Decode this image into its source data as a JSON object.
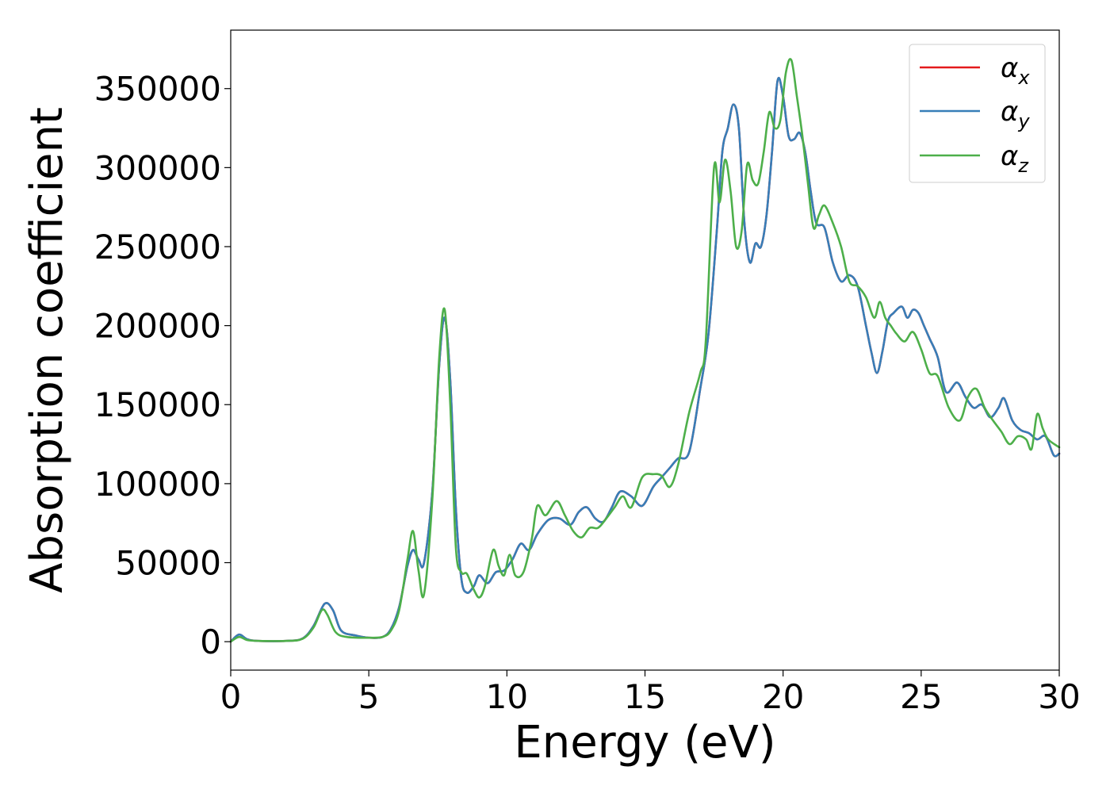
{
  "chart_data": {
    "type": "line",
    "title": "",
    "xlabel": "Energy (eV)",
    "ylabel": "Absorption coefficient",
    "xlim": [
      0,
      30
    ],
    "ylim": [
      -18000,
      387000
    ],
    "x_ticks": [
      0,
      5,
      10,
      15,
      20,
      25,
      30
    ],
    "y_ticks": [
      0,
      50000,
      100000,
      150000,
      200000,
      250000,
      300000,
      350000
    ],
    "grid": false,
    "legend_position": "top-right",
    "series": [
      {
        "name": "α",
        "subscript": "x",
        "color": "#e41a1c",
        "x": [
          0,
          0.3,
          0.6,
          1.0,
          2.0,
          2.6,
          3.0,
          3.4,
          3.7,
          4.0,
          4.5,
          5.0,
          5.5,
          5.8,
          6.1,
          6.4,
          6.6,
          6.8,
          7.0,
          7.3,
          7.55,
          7.75,
          7.95,
          8.15,
          8.35,
          8.55,
          8.8,
          9.0,
          9.3,
          9.6,
          9.9,
          10.2,
          10.5,
          10.8,
          11.1,
          11.5,
          11.9,
          12.3,
          12.6,
          12.9,
          13.2,
          13.5,
          13.8,
          14.1,
          14.5,
          14.9,
          15.3,
          15.6,
          15.9,
          16.2,
          16.6,
          17.0,
          17.3,
          17.6,
          17.8,
          18.0,
          18.2,
          18.4,
          18.6,
          18.8,
          19.0,
          19.2,
          19.4,
          19.6,
          19.8,
          20.0,
          20.2,
          20.4,
          20.6,
          20.8,
          21.0,
          21.2,
          21.5,
          21.8,
          22.1,
          22.4,
          22.7,
          23.0,
          23.2,
          23.4,
          23.6,
          23.8,
          24.0,
          24.3,
          24.5,
          24.7,
          24.9,
          25.1,
          25.3,
          25.6,
          25.9,
          26.3,
          26.6,
          26.9,
          27.2,
          27.5,
          27.8,
          28.0,
          28.3,
          28.6,
          28.9,
          29.2,
          29.5,
          29.8,
          30.0
        ],
        "y": [
          0,
          4500,
          1500,
          500,
          500,
          2000,
          10000,
          24000,
          20000,
          7000,
          4000,
          2500,
          3000,
          8000,
          22000,
          48000,
          58000,
          52000,
          50000,
          95000,
          175000,
          205000,
          165000,
          85000,
          40000,
          31000,
          35000,
          42000,
          37000,
          44000,
          45000,
          52000,
          62000,
          58000,
          68000,
          77000,
          78000,
          74000,
          82000,
          85000,
          78000,
          76000,
          85000,
          95000,
          92000,
          86000,
          98000,
          104000,
          110000,
          116000,
          120000,
          160000,
          195000,
          260000,
          310000,
          325000,
          340000,
          325000,
          265000,
          240000,
          252000,
          250000,
          270000,
          310000,
          355000,
          345000,
          320000,
          318000,
          322000,
          310000,
          285000,
          265000,
          262000,
          240000,
          228000,
          232000,
          225000,
          200000,
          183000,
          170000,
          184000,
          203000,
          208000,
          212000,
          205000,
          210000,
          208000,
          200000,
          192000,
          180000,
          158000,
          164000,
          155000,
          148000,
          150000,
          142000,
          148000,
          154000,
          140000,
          134000,
          132000,
          128000,
          130000,
          118000,
          119000
        ]
      },
      {
        "name": "α",
        "subscript": "y",
        "color": "#377eb8",
        "x": [
          0,
          0.3,
          0.6,
          1.0,
          2.0,
          2.6,
          3.0,
          3.4,
          3.7,
          4.0,
          4.5,
          5.0,
          5.5,
          5.8,
          6.1,
          6.4,
          6.6,
          6.8,
          7.0,
          7.3,
          7.55,
          7.75,
          7.95,
          8.15,
          8.35,
          8.55,
          8.8,
          9.0,
          9.3,
          9.6,
          9.9,
          10.2,
          10.5,
          10.8,
          11.1,
          11.5,
          11.9,
          12.3,
          12.6,
          12.9,
          13.2,
          13.5,
          13.8,
          14.1,
          14.5,
          14.9,
          15.3,
          15.6,
          15.9,
          16.2,
          16.6,
          17.0,
          17.3,
          17.6,
          17.8,
          18.0,
          18.2,
          18.4,
          18.6,
          18.8,
          19.0,
          19.2,
          19.4,
          19.6,
          19.8,
          20.0,
          20.2,
          20.4,
          20.6,
          20.8,
          21.0,
          21.2,
          21.5,
          21.8,
          22.1,
          22.4,
          22.7,
          23.0,
          23.2,
          23.4,
          23.6,
          23.8,
          24.0,
          24.3,
          24.5,
          24.7,
          24.9,
          25.1,
          25.3,
          25.6,
          25.9,
          26.3,
          26.6,
          26.9,
          27.2,
          27.5,
          27.8,
          28.0,
          28.3,
          28.6,
          28.9,
          29.2,
          29.5,
          29.8,
          30.0
        ],
        "y": [
          0,
          4500,
          1500,
          500,
          500,
          2000,
          10000,
          24000,
          20000,
          7000,
          4000,
          2500,
          3000,
          8000,
          22000,
          48000,
          58000,
          52000,
          50000,
          95000,
          175000,
          205000,
          165000,
          85000,
          40000,
          31000,
          35000,
          42000,
          37000,
          44000,
          45000,
          52000,
          62000,
          58000,
          68000,
          77000,
          78000,
          74000,
          82000,
          85000,
          78000,
          76000,
          85000,
          95000,
          92000,
          86000,
          98000,
          104000,
          110000,
          116000,
          120000,
          160000,
          195000,
          260000,
          310000,
          325000,
          340000,
          325000,
          265000,
          240000,
          252000,
          250000,
          270000,
          310000,
          355000,
          345000,
          320000,
          318000,
          322000,
          310000,
          285000,
          265000,
          262000,
          240000,
          228000,
          232000,
          225000,
          200000,
          183000,
          170000,
          184000,
          203000,
          208000,
          212000,
          205000,
          210000,
          208000,
          200000,
          192000,
          180000,
          158000,
          164000,
          155000,
          148000,
          150000,
          142000,
          148000,
          154000,
          140000,
          134000,
          132000,
          128000,
          130000,
          118000,
          119000
        ]
      },
      {
        "name": "α",
        "subscript": "z",
        "color": "#4daf4a",
        "x": [
          0,
          0.3,
          0.6,
          1.0,
          2.0,
          2.6,
          3.0,
          3.3,
          3.5,
          3.8,
          4.2,
          5.0,
          5.5,
          5.8,
          6.1,
          6.4,
          6.6,
          6.8,
          7.0,
          7.3,
          7.55,
          7.75,
          7.95,
          8.15,
          8.35,
          8.55,
          8.8,
          9.0,
          9.2,
          9.5,
          9.7,
          9.9,
          10.1,
          10.3,
          10.6,
          10.9,
          11.1,
          11.4,
          11.8,
          12.1,
          12.4,
          12.7,
          13.0,
          13.3,
          13.6,
          13.9,
          14.2,
          14.5,
          14.9,
          15.3,
          15.6,
          15.9,
          16.2,
          16.6,
          17.0,
          17.2,
          17.5,
          17.7,
          17.9,
          18.1,
          18.3,
          18.5,
          18.7,
          18.9,
          19.1,
          19.3,
          19.5,
          19.7,
          19.9,
          20.1,
          20.3,
          20.5,
          20.7,
          20.9,
          21.1,
          21.3,
          21.5,
          21.8,
          22.1,
          22.4,
          22.7,
          23.0,
          23.3,
          23.5,
          23.7,
          23.9,
          24.1,
          24.4,
          24.7,
          25.0,
          25.3,
          25.6,
          26.0,
          26.4,
          26.7,
          27.0,
          27.3,
          27.6,
          27.9,
          28.2,
          28.5,
          28.8,
          29.0,
          29.2,
          29.4,
          29.6,
          30.0
        ],
        "y": [
          0,
          3000,
          1000,
          500,
          500,
          1800,
          9000,
          20000,
          17000,
          6000,
          3000,
          2500,
          3000,
          7000,
          20000,
          52000,
          70000,
          45000,
          30000,
          90000,
          180000,
          210000,
          150000,
          60000,
          44000,
          43000,
          33000,
          28000,
          35000,
          58000,
          48000,
          42000,
          55000,
          42000,
          44000,
          65000,
          86000,
          80000,
          89000,
          80000,
          70000,
          66000,
          72000,
          72000,
          78000,
          85000,
          92000,
          85000,
          104000,
          106000,
          105000,
          98000,
          112000,
          145000,
          170000,
          190000,
          300000,
          278000,
          305000,
          285000,
          250000,
          260000,
          302000,
          292000,
          290000,
          310000,
          335000,
          325000,
          330000,
          360000,
          368000,
          345000,
          320000,
          290000,
          262000,
          270000,
          276000,
          265000,
          250000,
          228000,
          225000,
          218000,
          205000,
          215000,
          205000,
          200000,
          195000,
          190000,
          196000,
          185000,
          170000,
          168000,
          148000,
          140000,
          155000,
          160000,
          148000,
          140000,
          133000,
          125000,
          130000,
          128000,
          122000,
          144000,
          135000,
          128000,
          123000
        ]
      }
    ]
  }
}
